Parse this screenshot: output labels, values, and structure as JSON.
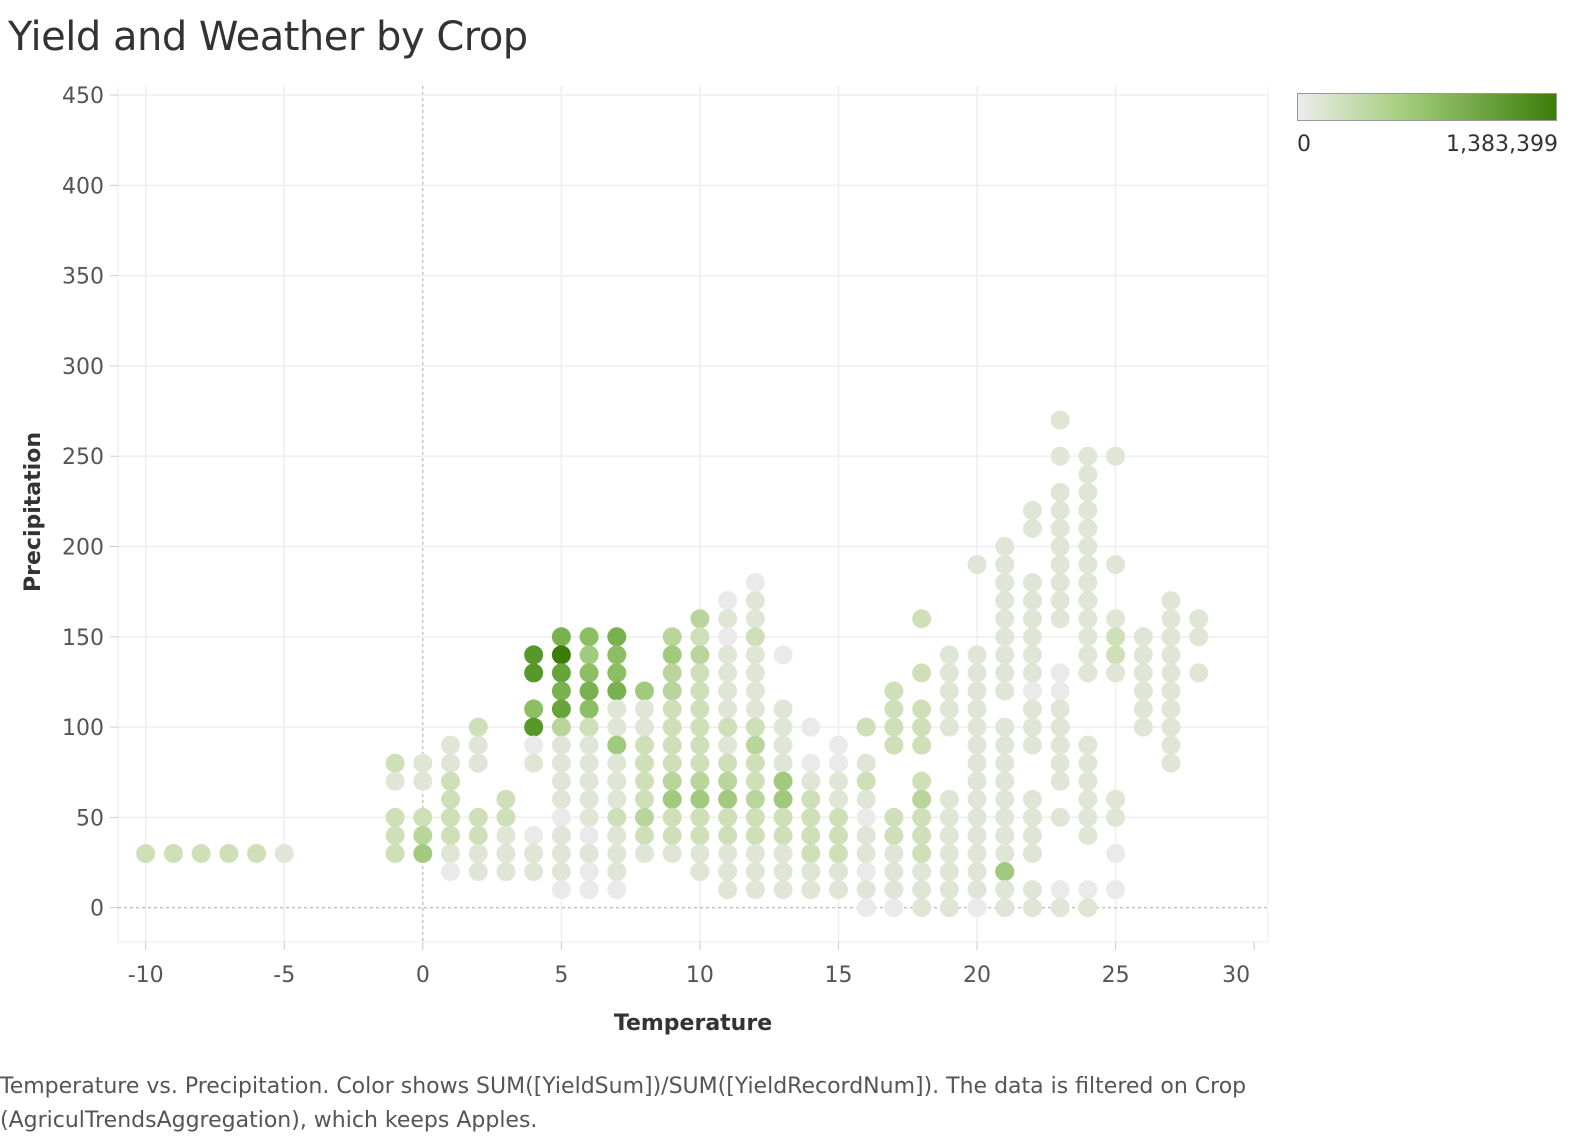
{
  "chart_data": {
    "type": "scatter",
    "title": "Yield and Weather by Crop",
    "xlabel": "Temperature",
    "ylabel": "Precipitation",
    "xlim": [
      -11,
      30.5
    ],
    "ylim": [
      -19,
      455
    ],
    "xticks": [
      "-10",
      "-5",
      "0",
      "5",
      "10",
      "15",
      "20",
      "25",
      "30"
    ],
    "yticks": [
      "0",
      "50",
      "100",
      "150",
      "200",
      "250",
      "300",
      "350",
      "400",
      "450"
    ],
    "color_scale": {
      "min_label": "0",
      "max_label": "1,383,399",
      "min_color": "#ececec",
      "max_color": "#3b7d09"
    },
    "grid": true,
    "caption": "Temperature vs. Precipitation.  Color shows SUM([YieldSum])/SUM([YieldRecordNum]). The data is filtered on Crop (AgriculTrendsAggregation), which keeps Apples.",
    "points_xyz_intensity_0_to_10": [
      [
        -10,
        30,
        2
      ],
      [
        -9,
        30,
        2
      ],
      [
        -8,
        30,
        2
      ],
      [
        -7,
        30,
        2
      ],
      [
        -6,
        30,
        2
      ],
      [
        -5,
        30,
        1
      ],
      [
        -1,
        80,
        2
      ],
      [
        -1,
        70,
        1
      ],
      [
        -1,
        50,
        2
      ],
      [
        -1,
        40,
        2
      ],
      [
        -1,
        30,
        2
      ],
      [
        0,
        80,
        1
      ],
      [
        0,
        70,
        1
      ],
      [
        0,
        50,
        2
      ],
      [
        0,
        40,
        3
      ],
      [
        0,
        30,
        4
      ],
      [
        1,
        90,
        1
      ],
      [
        1,
        80,
        1
      ],
      [
        1,
        70,
        2
      ],
      [
        1,
        60,
        2
      ],
      [
        1,
        50,
        2
      ],
      [
        1,
        40,
        2
      ],
      [
        1,
        30,
        1
      ],
      [
        1,
        20,
        0
      ],
      [
        2,
        100,
        2
      ],
      [
        2,
        90,
        1
      ],
      [
        2,
        80,
        1
      ],
      [
        2,
        50,
        2
      ],
      [
        2,
        40,
        2
      ],
      [
        2,
        30,
        1
      ],
      [
        2,
        20,
        1
      ],
      [
        3,
        60,
        2
      ],
      [
        3,
        50,
        2
      ],
      [
        3,
        40,
        1
      ],
      [
        3,
        30,
        1
      ],
      [
        3,
        20,
        1
      ],
      [
        4,
        140,
        8
      ],
      [
        4,
        130,
        8
      ],
      [
        4,
        110,
        5
      ],
      [
        4,
        100,
        8
      ],
      [
        4,
        90,
        0
      ],
      [
        4,
        80,
        1
      ],
      [
        4,
        40,
        0
      ],
      [
        4,
        30,
        1
      ],
      [
        4,
        20,
        1
      ],
      [
        5,
        150,
        6
      ],
      [
        5,
        140,
        10
      ],
      [
        5,
        130,
        7
      ],
      [
        5,
        120,
        6
      ],
      [
        5,
        110,
        7
      ],
      [
        5,
        100,
        3
      ],
      [
        5,
        90,
        1
      ],
      [
        5,
        80,
        1
      ],
      [
        5,
        70,
        1
      ],
      [
        5,
        60,
        1
      ],
      [
        5,
        50,
        0
      ],
      [
        5,
        40,
        1
      ],
      [
        5,
        30,
        1
      ],
      [
        5,
        20,
        1
      ],
      [
        5,
        10,
        0
      ],
      [
        6,
        150,
        5
      ],
      [
        6,
        140,
        4
      ],
      [
        6,
        130,
        5
      ],
      [
        6,
        120,
        6
      ],
      [
        6,
        110,
        5
      ],
      [
        6,
        100,
        2
      ],
      [
        6,
        90,
        1
      ],
      [
        6,
        80,
        1
      ],
      [
        6,
        70,
        1
      ],
      [
        6,
        60,
        1
      ],
      [
        6,
        50,
        1
      ],
      [
        6,
        40,
        0
      ],
      [
        6,
        30,
        1
      ],
      [
        6,
        20,
        0
      ],
      [
        6,
        10,
        0
      ],
      [
        7,
        150,
        6
      ],
      [
        7,
        140,
        5
      ],
      [
        7,
        130,
        5
      ],
      [
        7,
        120,
        6
      ],
      [
        7,
        110,
        1
      ],
      [
        7,
        100,
        1
      ],
      [
        7,
        90,
        4
      ],
      [
        7,
        80,
        1
      ],
      [
        7,
        70,
        1
      ],
      [
        7,
        60,
        1
      ],
      [
        7,
        50,
        2
      ],
      [
        7,
        40,
        1
      ],
      [
        7,
        30,
        1
      ],
      [
        7,
        20,
        1
      ],
      [
        7,
        10,
        0
      ],
      [
        8,
        120,
        4
      ],
      [
        8,
        110,
        1
      ],
      [
        8,
        100,
        1
      ],
      [
        8,
        90,
        2
      ],
      [
        8,
        80,
        2
      ],
      [
        8,
        70,
        2
      ],
      [
        8,
        60,
        2
      ],
      [
        8,
        50,
        3
      ],
      [
        8,
        40,
        2
      ],
      [
        8,
        30,
        1
      ],
      [
        9,
        150,
        3
      ],
      [
        9,
        140,
        4
      ],
      [
        9,
        130,
        3
      ],
      [
        9,
        120,
        3
      ],
      [
        9,
        110,
        2
      ],
      [
        9,
        100,
        2
      ],
      [
        9,
        90,
        2
      ],
      [
        9,
        80,
        2
      ],
      [
        9,
        70,
        3
      ],
      [
        9,
        60,
        4
      ],
      [
        9,
        50,
        2
      ],
      [
        9,
        40,
        2
      ],
      [
        9,
        30,
        1
      ],
      [
        10,
        160,
        3
      ],
      [
        10,
        150,
        2
      ],
      [
        10,
        140,
        3
      ],
      [
        10,
        130,
        2
      ],
      [
        10,
        120,
        2
      ],
      [
        10,
        110,
        2
      ],
      [
        10,
        100,
        2
      ],
      [
        10,
        90,
        2
      ],
      [
        10,
        80,
        2
      ],
      [
        10,
        70,
        3
      ],
      [
        10,
        60,
        4
      ],
      [
        10,
        50,
        2
      ],
      [
        10,
        40,
        2
      ],
      [
        10,
        30,
        1
      ],
      [
        10,
        20,
        1
      ],
      [
        11,
        170,
        0
      ],
      [
        11,
        160,
        1
      ],
      [
        11,
        150,
        0
      ],
      [
        11,
        140,
        1
      ],
      [
        11,
        130,
        1
      ],
      [
        11,
        120,
        1
      ],
      [
        11,
        110,
        1
      ],
      [
        11,
        100,
        2
      ],
      [
        11,
        90,
        1
      ],
      [
        11,
        80,
        2
      ],
      [
        11,
        70,
        3
      ],
      [
        11,
        60,
        4
      ],
      [
        11,
        50,
        2
      ],
      [
        11,
        40,
        2
      ],
      [
        11,
        30,
        1
      ],
      [
        11,
        20,
        1
      ],
      [
        11,
        10,
        1
      ],
      [
        12,
        180,
        0
      ],
      [
        12,
        170,
        1
      ],
      [
        12,
        160,
        1
      ],
      [
        12,
        150,
        2
      ],
      [
        12,
        140,
        1
      ],
      [
        12,
        130,
        1
      ],
      [
        12,
        120,
        1
      ],
      [
        12,
        110,
        1
      ],
      [
        12,
        100,
        2
      ],
      [
        12,
        90,
        3
      ],
      [
        12,
        80,
        2
      ],
      [
        12,
        70,
        2
      ],
      [
        12,
        60,
        3
      ],
      [
        12,
        50,
        2
      ],
      [
        12,
        40,
        2
      ],
      [
        12,
        30,
        1
      ],
      [
        12,
        20,
        1
      ],
      [
        12,
        10,
        1
      ],
      [
        13,
        140,
        0
      ],
      [
        13,
        110,
        1
      ],
      [
        13,
        100,
        1
      ],
      [
        13,
        90,
        1
      ],
      [
        13,
        80,
        1
      ],
      [
        13,
        70,
        4
      ],
      [
        13,
        60,
        4
      ],
      [
        13,
        50,
        2
      ],
      [
        13,
        40,
        2
      ],
      [
        13,
        30,
        1
      ],
      [
        13,
        20,
        1
      ],
      [
        13,
        10,
        1
      ],
      [
        14,
        100,
        0
      ],
      [
        14,
        80,
        0
      ],
      [
        14,
        70,
        1
      ],
      [
        14,
        60,
        2
      ],
      [
        14,
        50,
        2
      ],
      [
        14,
        40,
        2
      ],
      [
        14,
        30,
        2
      ],
      [
        14,
        20,
        1
      ],
      [
        14,
        10,
        1
      ],
      [
        15,
        90,
        0
      ],
      [
        15,
        80,
        0
      ],
      [
        15,
        70,
        1
      ],
      [
        15,
        60,
        1
      ],
      [
        15,
        50,
        2
      ],
      [
        15,
        40,
        2
      ],
      [
        15,
        30,
        2
      ],
      [
        15,
        20,
        1
      ],
      [
        15,
        10,
        1
      ],
      [
        16,
        100,
        2
      ],
      [
        16,
        80,
        1
      ],
      [
        16,
        70,
        2
      ],
      [
        16,
        60,
        1
      ],
      [
        16,
        50,
        0
      ],
      [
        16,
        40,
        1
      ],
      [
        16,
        30,
        1
      ],
      [
        16,
        20,
        0
      ],
      [
        16,
        10,
        1
      ],
      [
        16,
        0,
        0
      ],
      [
        17,
        120,
        2
      ],
      [
        17,
        110,
        2
      ],
      [
        17,
        100,
        2
      ],
      [
        17,
        90,
        2
      ],
      [
        17,
        50,
        2
      ],
      [
        17,
        40,
        2
      ],
      [
        17,
        30,
        1
      ],
      [
        17,
        20,
        1
      ],
      [
        17,
        10,
        1
      ],
      [
        17,
        0,
        0
      ],
      [
        18,
        160,
        2
      ],
      [
        18,
        130,
        2
      ],
      [
        18,
        110,
        2
      ],
      [
        18,
        100,
        2
      ],
      [
        18,
        90,
        2
      ],
      [
        18,
        70,
        2
      ],
      [
        18,
        60,
        3
      ],
      [
        18,
        50,
        2
      ],
      [
        18,
        40,
        2
      ],
      [
        18,
        30,
        2
      ],
      [
        18,
        20,
        1
      ],
      [
        18,
        10,
        1
      ],
      [
        18,
        0,
        1
      ],
      [
        19,
        140,
        1
      ],
      [
        19,
        130,
        1
      ],
      [
        19,
        120,
        1
      ],
      [
        19,
        110,
        1
      ],
      [
        19,
        100,
        1
      ],
      [
        19,
        60,
        1
      ],
      [
        19,
        50,
        1
      ],
      [
        19,
        40,
        1
      ],
      [
        19,
        30,
        1
      ],
      [
        19,
        20,
        1
      ],
      [
        19,
        10,
        1
      ],
      [
        19,
        0,
        1
      ],
      [
        20,
        190,
        1
      ],
      [
        20,
        140,
        1
      ],
      [
        20,
        130,
        1
      ],
      [
        20,
        120,
        1
      ],
      [
        20,
        110,
        1
      ],
      [
        20,
        100,
        1
      ],
      [
        20,
        90,
        1
      ],
      [
        20,
        80,
        1
      ],
      [
        20,
        70,
        1
      ],
      [
        20,
        60,
        1
      ],
      [
        20,
        50,
        1
      ],
      [
        20,
        40,
        1
      ],
      [
        20,
        30,
        1
      ],
      [
        20,
        20,
        1
      ],
      [
        20,
        10,
        1
      ],
      [
        20,
        0,
        0
      ],
      [
        21,
        200,
        1
      ],
      [
        21,
        190,
        1
      ],
      [
        21,
        180,
        1
      ],
      [
        21,
        170,
        1
      ],
      [
        21,
        160,
        1
      ],
      [
        21,
        150,
        1
      ],
      [
        21,
        140,
        1
      ],
      [
        21,
        130,
        1
      ],
      [
        21,
        120,
        1
      ],
      [
        21,
        100,
        1
      ],
      [
        21,
        90,
        1
      ],
      [
        21,
        80,
        1
      ],
      [
        21,
        70,
        1
      ],
      [
        21,
        60,
        1
      ],
      [
        21,
        50,
        1
      ],
      [
        21,
        40,
        1
      ],
      [
        21,
        30,
        1
      ],
      [
        21,
        20,
        4
      ],
      [
        21,
        10,
        1
      ],
      [
        21,
        0,
        1
      ],
      [
        22,
        220,
        1
      ],
      [
        22,
        210,
        1
      ],
      [
        22,
        180,
        1
      ],
      [
        22,
        170,
        1
      ],
      [
        22,
        160,
        1
      ],
      [
        22,
        150,
        1
      ],
      [
        22,
        140,
        1
      ],
      [
        22,
        130,
        1
      ],
      [
        22,
        120,
        0
      ],
      [
        22,
        110,
        1
      ],
      [
        22,
        100,
        1
      ],
      [
        22,
        90,
        1
      ],
      [
        22,
        60,
        1
      ],
      [
        22,
        50,
        1
      ],
      [
        22,
        40,
        1
      ],
      [
        22,
        30,
        1
      ],
      [
        22,
        10,
        1
      ],
      [
        22,
        0,
        1
      ],
      [
        23,
        270,
        1
      ],
      [
        23,
        250,
        1
      ],
      [
        23,
        230,
        1
      ],
      [
        23,
        220,
        1
      ],
      [
        23,
        210,
        1
      ],
      [
        23,
        200,
        1
      ],
      [
        23,
        190,
        1
      ],
      [
        23,
        180,
        1
      ],
      [
        23,
        170,
        1
      ],
      [
        23,
        160,
        1
      ],
      [
        23,
        130,
        0
      ],
      [
        23,
        120,
        0
      ],
      [
        23,
        110,
        1
      ],
      [
        23,
        100,
        1
      ],
      [
        23,
        90,
        1
      ],
      [
        23,
        80,
        1
      ],
      [
        23,
        70,
        1
      ],
      [
        23,
        50,
        1
      ],
      [
        23,
        10,
        0
      ],
      [
        23,
        0,
        1
      ],
      [
        24,
        250,
        1
      ],
      [
        24,
        240,
        1
      ],
      [
        24,
        230,
        1
      ],
      [
        24,
        220,
        1
      ],
      [
        24,
        210,
        1
      ],
      [
        24,
        200,
        1
      ],
      [
        24,
        190,
        1
      ],
      [
        24,
        180,
        1
      ],
      [
        24,
        170,
        1
      ],
      [
        24,
        160,
        1
      ],
      [
        24,
        150,
        1
      ],
      [
        24,
        140,
        1
      ],
      [
        24,
        130,
        1
      ],
      [
        24,
        90,
        1
      ],
      [
        24,
        80,
        1
      ],
      [
        24,
        70,
        1
      ],
      [
        24,
        60,
        1
      ],
      [
        24,
        50,
        1
      ],
      [
        24,
        40,
        1
      ],
      [
        24,
        10,
        0
      ],
      [
        24,
        0,
        1
      ],
      [
        25,
        250,
        1
      ],
      [
        25,
        190,
        1
      ],
      [
        25,
        160,
        1
      ],
      [
        25,
        150,
        2
      ],
      [
        25,
        140,
        2
      ],
      [
        25,
        130,
        1
      ],
      [
        25,
        60,
        1
      ],
      [
        25,
        50,
        1
      ],
      [
        25,
        30,
        0
      ],
      [
        25,
        10,
        0
      ],
      [
        26,
        150,
        1
      ],
      [
        26,
        140,
        1
      ],
      [
        26,
        130,
        1
      ],
      [
        26,
        120,
        1
      ],
      [
        26,
        110,
        1
      ],
      [
        26,
        100,
        1
      ],
      [
        27,
        170,
        1
      ],
      [
        27,
        160,
        1
      ],
      [
        27,
        150,
        1
      ],
      [
        27,
        140,
        1
      ],
      [
        27,
        130,
        1
      ],
      [
        27,
        120,
        1
      ],
      [
        27,
        110,
        1
      ],
      [
        27,
        100,
        1
      ],
      [
        27,
        90,
        1
      ],
      [
        27,
        80,
        1
      ],
      [
        28,
        160,
        1
      ],
      [
        28,
        150,
        1
      ],
      [
        28,
        130,
        1
      ]
    ]
  }
}
